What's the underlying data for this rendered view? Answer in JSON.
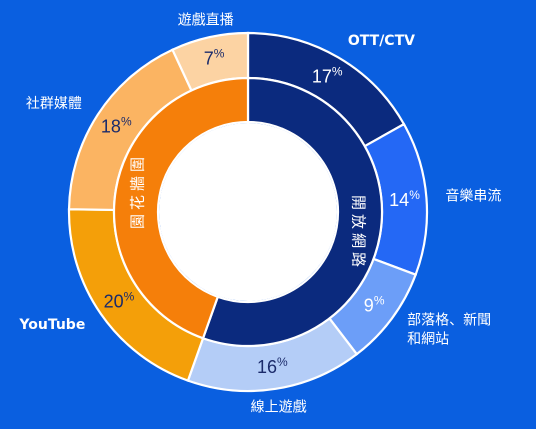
{
  "chart_data": {
    "type": "donut",
    "outer_ring": [
      {
        "label": "OTT/CTV",
        "value": 17,
        "value_label": "17%",
        "color": "#0b2a7e",
        "label_bold": true
      },
      {
        "label": "音樂串流",
        "value": 14,
        "value_label": "14%",
        "color": "#2468f5",
        "label_bold": false
      },
      {
        "label": "部落格、新聞\n和網站",
        "value": 9,
        "value_label": "9%",
        "color": "#6c9ef8",
        "label_bold": false
      },
      {
        "label": "線上遊戲",
        "value": 16,
        "value_label": "16%",
        "color": "#b4cdf7",
        "label_bold": false
      },
      {
        "label": "YouTube",
        "value": 20,
        "value_label": "20%",
        "color": "#f49f09",
        "label_bold": true
      },
      {
        "label": "社群媒體",
        "value": 18,
        "value_label": "18%",
        "color": "#fbb462",
        "label_bold": false
      },
      {
        "label": "遊戲直播",
        "value": 7,
        "value_label": "7%",
        "color": "#fcd3a3",
        "label_bold": false
      }
    ],
    "inner_ring": [
      {
        "label": "開放網路",
        "value": 56,
        "color": "#0b2a7e"
      },
      {
        "label": "圍牆花園",
        "value": 45,
        "color": "#f57f0a"
      }
    ]
  }
}
